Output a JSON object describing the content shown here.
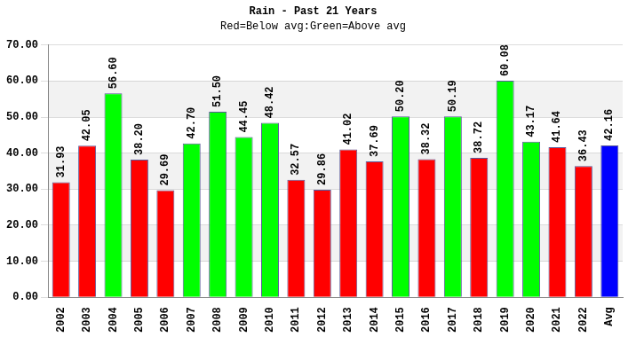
{
  "chart_data": {
    "type": "bar",
    "title": "Rain - Past 21 Years",
    "subtitle": "Red=Below avg:Green=Above avg",
    "categories": [
      "2002",
      "2003",
      "2004",
      "2005",
      "2006",
      "2007",
      "2008",
      "2009",
      "2010",
      "2011",
      "2012",
      "2013",
      "2014",
      "2015",
      "2016",
      "2017",
      "2018",
      "2019",
      "2020",
      "2021",
      "2022",
      "Avg"
    ],
    "values": [
      31.93,
      42.05,
      56.6,
      38.2,
      29.69,
      42.7,
      51.5,
      44.45,
      48.42,
      32.57,
      29.86,
      41.02,
      37.69,
      50.2,
      38.32,
      50.19,
      38.72,
      60.08,
      43.17,
      41.64,
      36.43,
      42.16
    ],
    "value_labels": [
      "31.93",
      "42.05",
      "56.60",
      "38.20",
      "29.69",
      "42.70",
      "51.50",
      "44.45",
      "48.42",
      "32.57",
      "29.86",
      "41.02",
      "37.69",
      "50.20",
      "38.32",
      "50.19",
      "38.72",
      "60.08",
      "43.17",
      "41.64",
      "36.43",
      "42.16"
    ],
    "colors": [
      "#ff0000",
      "#ff0000",
      "#00ff00",
      "#ff0000",
      "#ff0000",
      "#00ff00",
      "#00ff00",
      "#00ff00",
      "#00ff00",
      "#ff0000",
      "#ff0000",
      "#ff0000",
      "#ff0000",
      "#00ff00",
      "#ff0000",
      "#00ff00",
      "#ff0000",
      "#00ff00",
      "#00ff00",
      "#ff0000",
      "#ff0000",
      "#0000ff"
    ],
    "ylim": [
      0,
      70
    ],
    "yticks": [
      {
        "value": 0,
        "label": "0.00"
      },
      {
        "value": 10,
        "label": "10.00"
      },
      {
        "value": 20,
        "label": "20.00"
      },
      {
        "value": 30,
        "label": "30.00"
      },
      {
        "value": 40,
        "label": "40.00"
      },
      {
        "value": 50,
        "label": "50.00"
      },
      {
        "value": 60,
        "label": "60.00"
      },
      {
        "value": 70,
        "label": "70.00"
      }
    ],
    "grid": true,
    "data_labels": true
  }
}
